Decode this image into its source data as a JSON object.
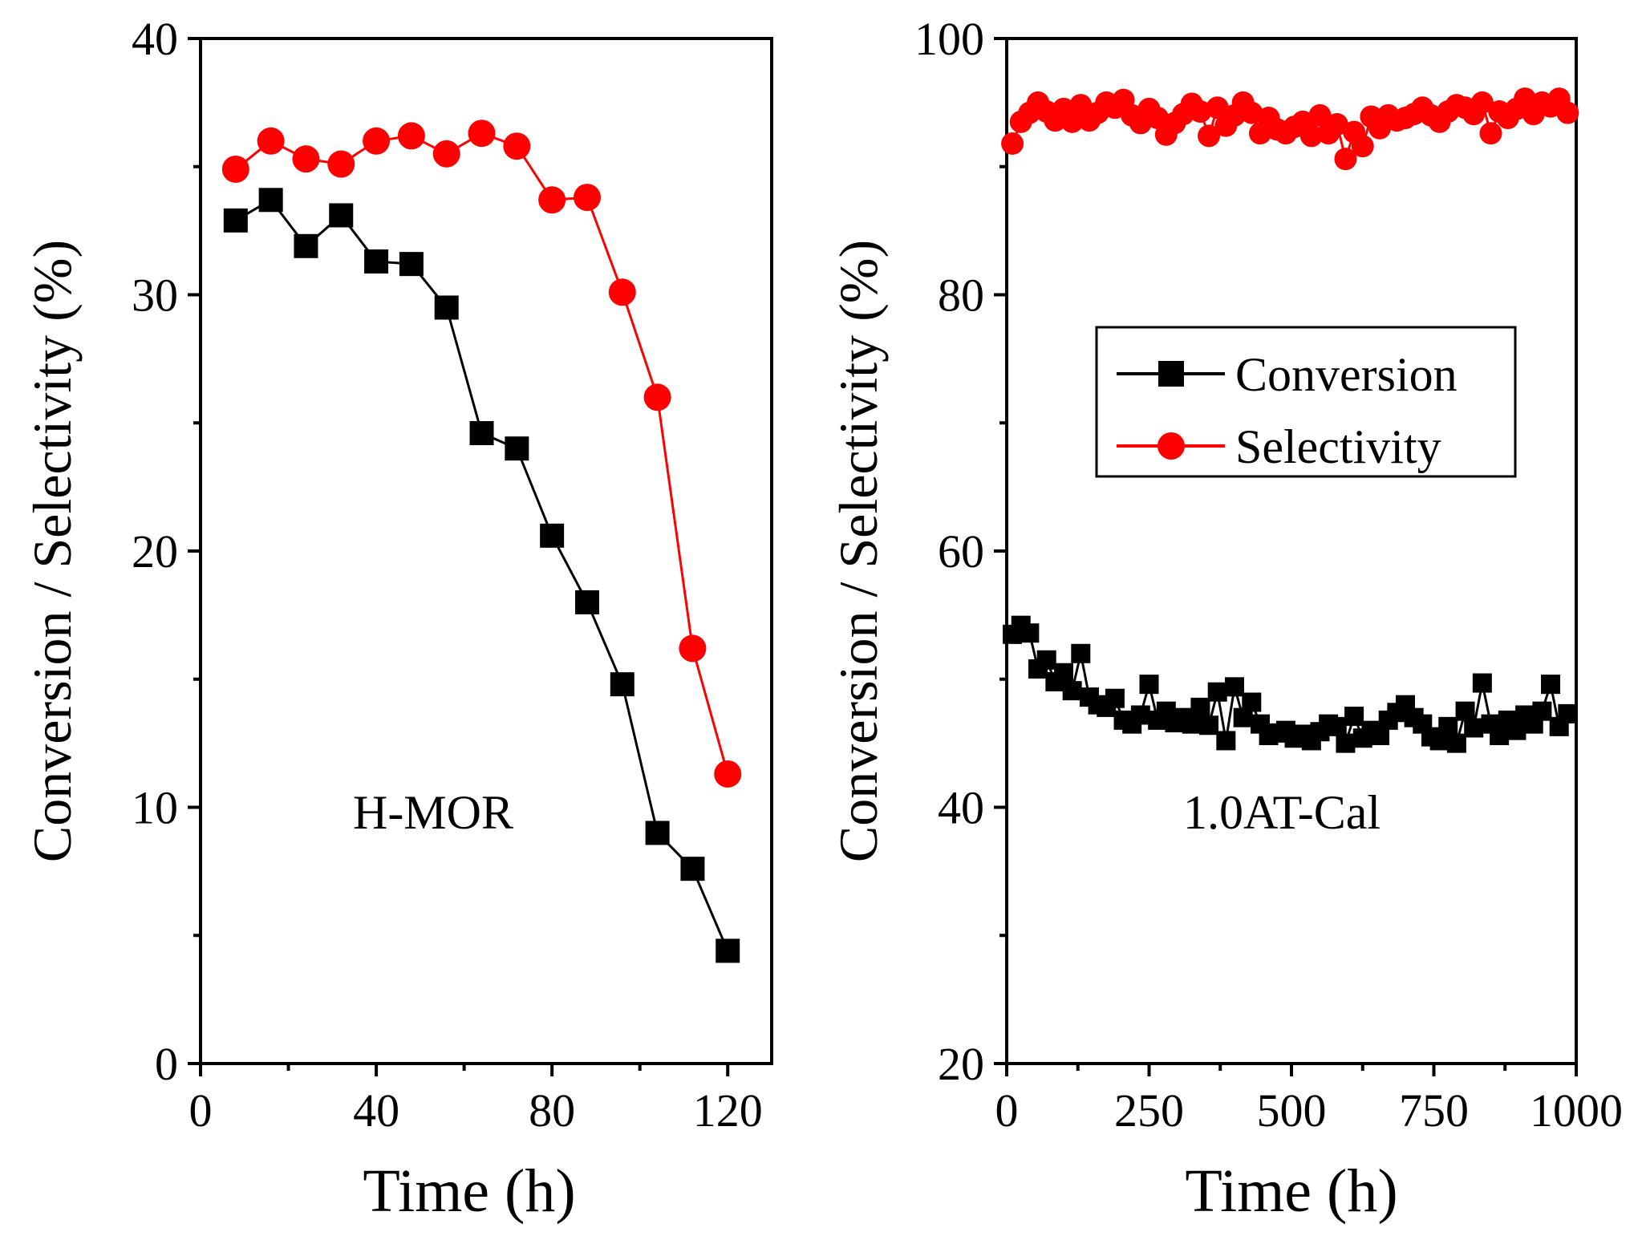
{
  "colors": {
    "conversion": "#000000",
    "selectivity": "#ff0000",
    "axis": "#000000"
  },
  "chart_data": [
    {
      "type": "line",
      "panel_label": "H-MOR",
      "xlabel": "Time (h)",
      "ylabel": "Conversion / Selectivity (%)",
      "xlim": [
        0,
        130
      ],
      "ylim": [
        0,
        40
      ],
      "xticks": [
        0,
        40,
        80,
        120
      ],
      "xticks_minor": [
        20,
        60,
        100
      ],
      "yticks": [
        0,
        10,
        20,
        30,
        40
      ],
      "yticks_minor": [
        5,
        15,
        25,
        35
      ],
      "xtick_labels": [
        "0",
        "40",
        "80",
        "120"
      ],
      "ytick_labels": [
        "0",
        "10",
        "20",
        "30",
        "40"
      ],
      "series": [
        {
          "name": "Conversion",
          "marker": "square",
          "color": "#000000",
          "x": [
            8,
            16,
            24,
            32,
            40,
            48,
            56,
            64,
            72,
            80,
            88,
            96,
            104,
            112,
            120
          ],
          "y": [
            32.9,
            33.7,
            31.9,
            33.1,
            31.3,
            31.2,
            29.5,
            24.6,
            24.0,
            20.6,
            18.0,
            14.8,
            9.0,
            7.6,
            4.4
          ]
        },
        {
          "name": "Selectivity",
          "marker": "circle",
          "color": "#ff0000",
          "x": [
            8,
            16,
            24,
            32,
            40,
            48,
            56,
            64,
            72,
            80,
            88,
            96,
            104,
            112,
            120
          ],
          "y": [
            34.9,
            36.0,
            35.3,
            35.1,
            36.0,
            36.2,
            35.5,
            36.3,
            35.8,
            33.7,
            33.8,
            30.1,
            26.0,
            16.2,
            11.3
          ]
        }
      ]
    },
    {
      "type": "line",
      "panel_label": "1.0AT-Cal",
      "xlabel": "Time (h)",
      "ylabel": "Conversion / Selectivity (%)",
      "xlim": [
        0,
        1000
      ],
      "ylim": [
        20,
        100
      ],
      "xticks": [
        0,
        250,
        500,
        750,
        1000
      ],
      "xticks_minor": [
        125,
        375,
        625,
        875
      ],
      "yticks": [
        20,
        40,
        60,
        80,
        100
      ],
      "yticks_minor": [
        30,
        50,
        70,
        90
      ],
      "xtick_labels": [
        "0",
        "250",
        "500",
        "750",
        "1000"
      ],
      "ytick_labels": [
        "20",
        "40",
        "60",
        "80",
        "100"
      ],
      "legend": {
        "position": "center-right",
        "entries": [
          "Conversion",
          "Selectivity"
        ]
      },
      "series": [
        {
          "name": "Conversion",
          "marker": "square",
          "color": "#000000",
          "x": [
            10,
            25,
            40,
            55,
            70,
            85,
            100,
            115,
            130,
            145,
            160,
            175,
            190,
            205,
            220,
            235,
            250,
            265,
            280,
            295,
            310,
            325,
            340,
            355,
            370,
            385,
            400,
            415,
            430,
            445,
            460,
            475,
            490,
            505,
            520,
            535,
            550,
            565,
            580,
            595,
            610,
            625,
            640,
            655,
            670,
            685,
            700,
            715,
            730,
            745,
            760,
            775,
            790,
            805,
            820,
            835,
            850,
            865,
            880,
            895,
            910,
            925,
            940,
            955,
            970,
            985
          ],
          "y": [
            53.5,
            54.2,
            53.6,
            50.8,
            51.5,
            49.8,
            50.5,
            49.1,
            52.0,
            48.6,
            48.0,
            47.8,
            48.5,
            46.8,
            46.5,
            47.2,
            49.6,
            46.8,
            47.5,
            46.6,
            47.0,
            46.5,
            47.8,
            46.4,
            49.0,
            45.2,
            49.4,
            47.0,
            48.2,
            46.5,
            45.6,
            45.8,
            46.0,
            45.4,
            45.7,
            45.2,
            45.9,
            46.5,
            46.3,
            45.0,
            47.1,
            45.4,
            46.0,
            45.6,
            46.8,
            47.4,
            48.0,
            47.0,
            46.5,
            45.5,
            45.2,
            46.3,
            45.0,
            47.5,
            46.2,
            49.7,
            46.5,
            45.6,
            46.8,
            46.0,
            47.2,
            46.5,
            47.5,
            49.6,
            46.3,
            47.3
          ]
        },
        {
          "name": "Selectivity",
          "marker": "circle",
          "color": "#ff0000",
          "x": [
            10,
            25,
            40,
            55,
            70,
            85,
            100,
            115,
            130,
            145,
            160,
            175,
            190,
            205,
            220,
            235,
            250,
            265,
            280,
            295,
            310,
            325,
            340,
            355,
            370,
            385,
            400,
            415,
            430,
            445,
            460,
            475,
            490,
            505,
            520,
            535,
            550,
            565,
            580,
            595,
            610,
            625,
            640,
            655,
            670,
            685,
            700,
            715,
            730,
            745,
            760,
            775,
            790,
            805,
            820,
            835,
            850,
            865,
            880,
            895,
            910,
            925,
            940,
            955,
            970,
            985
          ],
          "y": [
            91.8,
            93.5,
            94.2,
            95.0,
            94.3,
            93.6,
            94.5,
            93.5,
            94.8,
            93.6,
            94.2,
            95.0,
            94.6,
            95.2,
            94.0,
            93.4,
            94.5,
            93.8,
            92.5,
            93.4,
            94.1,
            94.9,
            94.3,
            92.4,
            94.6,
            93.2,
            94.0,
            95.0,
            94.2,
            92.6,
            93.8,
            92.9,
            92.6,
            93.1,
            93.5,
            92.4,
            94.0,
            92.6,
            93.3,
            90.6,
            92.7,
            91.6,
            93.9,
            93.0,
            94.0,
            93.6,
            93.8,
            94.1,
            94.6,
            94.0,
            93.5,
            94.3,
            94.8,
            94.6,
            94.1,
            95.0,
            92.6,
            94.3,
            93.8,
            94.5,
            95.3,
            94.1,
            95.0,
            94.7,
            95.3,
            94.2
          ]
        }
      ]
    }
  ]
}
